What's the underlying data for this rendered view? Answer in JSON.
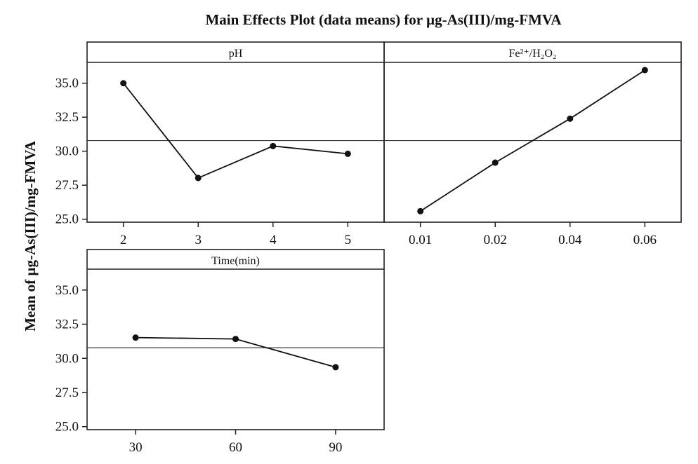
{
  "chart_data": {
    "type": "line",
    "title": "Main Effects Plot (data means) for µg-As(III)/mg-FMVA",
    "ylabel": "Mean of µg-As(III)/mg-FMVA",
    "xlabel": "",
    "ylim": [
      24.78,
      36.53
    ],
    "yticks": [
      "25.0",
      "27.5",
      "30.0",
      "32.5",
      "35.0"
    ],
    "ytick_values": [
      25.0,
      27.5,
      30.0,
      32.5,
      35.0
    ],
    "grand_mean": 30.78,
    "grid": false,
    "panels": [
      {
        "name": "pH",
        "categories": [
          "2",
          "3",
          "4",
          "5"
        ],
        "values": [
          35.0,
          28.03,
          30.38,
          29.81
        ]
      },
      {
        "name": "Fe²⁺/H₂O₂",
        "categories": [
          "0.01",
          "0.02",
          "0.04",
          "0.06"
        ],
        "values": [
          25.59,
          29.16,
          32.39,
          35.96
        ]
      },
      {
        "name": "Time(min)",
        "categories": [
          "30",
          "60",
          "90"
        ],
        "values": [
          31.52,
          31.42,
          29.35
        ]
      }
    ]
  }
}
